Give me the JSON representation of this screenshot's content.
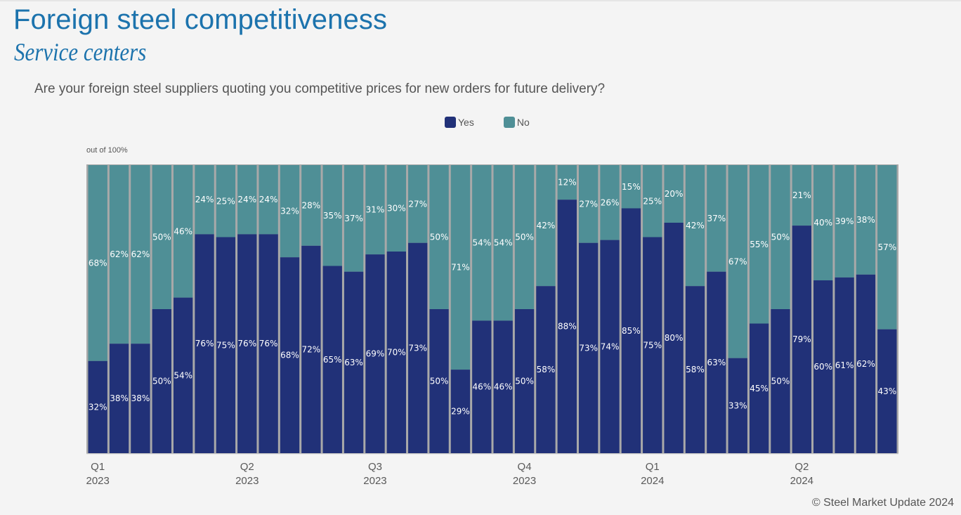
{
  "header": {
    "title": "Foreign steel competitiveness",
    "subtitle": "Service centers",
    "question": "Are your foreign steel suppliers quoting you competitive prices for new orders for future delivery?"
  },
  "legend": {
    "items": [
      {
        "label": "Yes",
        "color": "#213178"
      },
      {
        "label": "No",
        "color": "#4f8f96"
      }
    ]
  },
  "unit_label": "out of 100%",
  "footer": {
    "copyright": "© Steel Market Update 2024"
  },
  "chart_data": {
    "type": "bar",
    "stacked": true,
    "normalized_to": 100,
    "title": "Foreign steel competitiveness",
    "subtitle": "Service centers",
    "ylabel": "out of 100%",
    "ylim": [
      0,
      100
    ],
    "grid": false,
    "legend_position": "top-center",
    "x_tick_labels": [
      {
        "index": 0,
        "line1": "Q1",
        "line2": "2023"
      },
      {
        "index": 7,
        "line1": "Q2",
        "line2": "2023"
      },
      {
        "index": 13,
        "line1": "Q3",
        "line2": "2023"
      },
      {
        "index": 20,
        "line1": "Q4",
        "line2": "2023"
      },
      {
        "index": 26,
        "line1": "Q1",
        "line2": "2024"
      },
      {
        "index": 33,
        "line1": "Q2",
        "line2": "2024"
      }
    ],
    "series": [
      {
        "name": "Yes",
        "color": "#213178",
        "values": [
          32,
          38,
          38,
          50,
          54,
          76,
          75,
          76,
          76,
          68,
          72,
          65,
          63,
          69,
          70,
          73,
          50,
          29,
          46,
          46,
          50,
          58,
          88,
          73,
          74,
          85,
          75,
          80,
          58,
          63,
          33,
          45,
          50,
          79,
          60,
          61,
          62,
          43
        ]
      },
      {
        "name": "No",
        "color": "#4f8f96",
        "values": [
          68,
          62,
          62,
          50,
          46,
          24,
          25,
          24,
          24,
          32,
          28,
          35,
          37,
          31,
          30,
          27,
          50,
          71,
          54,
          54,
          50,
          42,
          12,
          27,
          26,
          15,
          25,
          20,
          42,
          37,
          67,
          55,
          50,
          21,
          40,
          39,
          38,
          57
        ]
      }
    ]
  }
}
